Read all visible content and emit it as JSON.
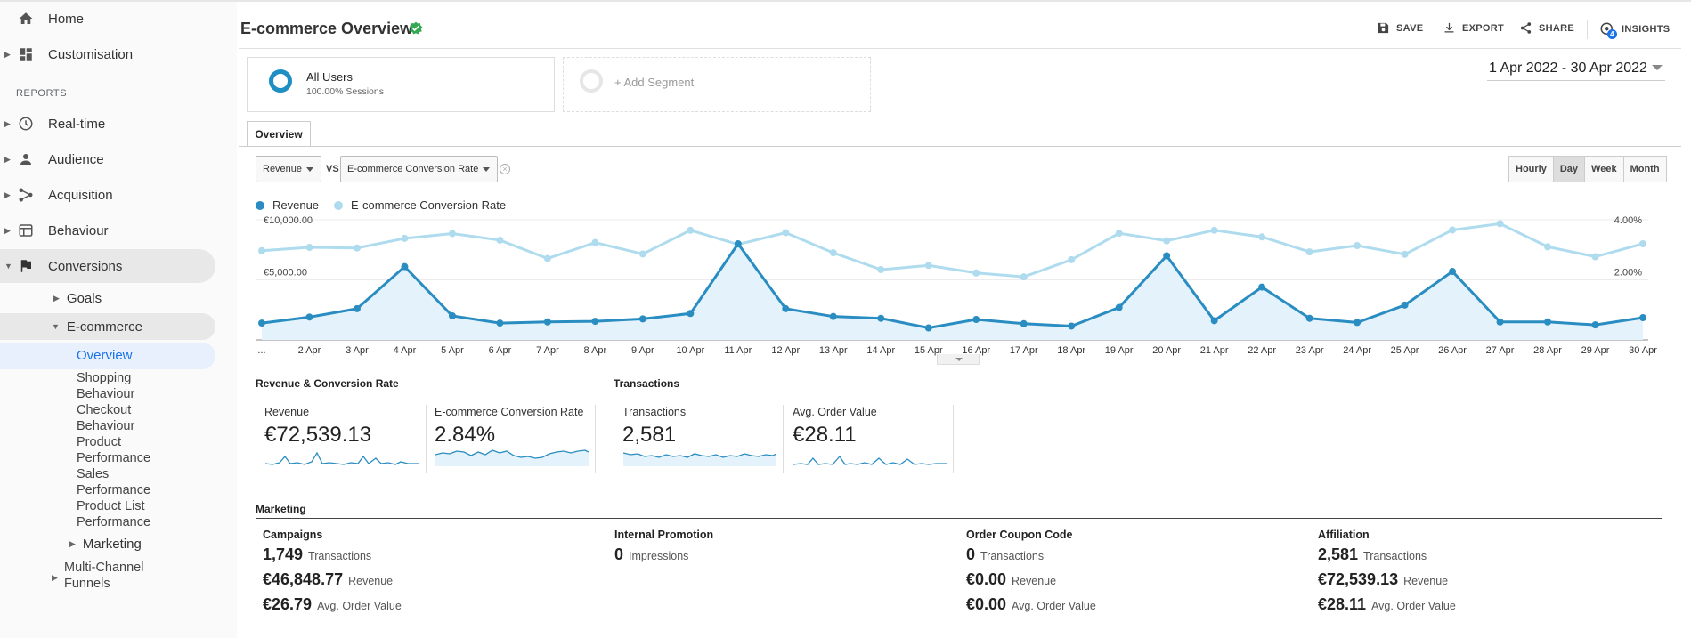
{
  "sidebar": {
    "home": "Home",
    "customisation": "Customisation",
    "reports_header": "REPORTS",
    "items": [
      "Real-time",
      "Audience",
      "Acquisition",
      "Behaviour",
      "Conversions"
    ],
    "goals": "Goals",
    "ecommerce": "E-commerce",
    "overview": "Overview",
    "leaves": [
      "Shopping",
      "Behaviour",
      "Checkout",
      "Behaviour",
      "Product",
      "Performance",
      "Sales",
      "Performance",
      "Product List",
      "Performance"
    ],
    "marketing": "Marketing",
    "multichannel_1": "Multi-Channel",
    "multichannel_2": "Funnels"
  },
  "header": {
    "title": "E-commerce Overview",
    "save": "SAVE",
    "export": "EXPORT",
    "share": "SHARE",
    "insights": "INSIGHTS",
    "insights_badge": "4"
  },
  "segments": {
    "all_users": "All Users",
    "all_users_sub": "100.00% Sessions",
    "add_segment": "+ Add Segment"
  },
  "date_range": "1 Apr 2022 - 30 Apr 2022",
  "tab": "Overview",
  "selectors": {
    "metric1": "Revenue",
    "vs": "VS",
    "metric2": "E-commerce Conversion Rate",
    "granularity": [
      "Hourly",
      "Day",
      "Week",
      "Month"
    ],
    "active": "Day"
  },
  "colors": {
    "revenue": "#2a8dc2",
    "conversion": "#aedcee",
    "area": "#e3f2fb",
    "accent_green": "#34a853"
  },
  "chart_data": {
    "type": "line",
    "x": [
      "...",
      "2 Apr",
      "3 Apr",
      "4 Apr",
      "5 Apr",
      "6 Apr",
      "7 Apr",
      "8 Apr",
      "9 Apr",
      "10 Apr",
      "11 Apr",
      "12 Apr",
      "13 Apr",
      "14 Apr",
      "15 Apr",
      "16 Apr",
      "17 Apr",
      "18 Apr",
      "19 Apr",
      "20 Apr",
      "21 Apr",
      "22 Apr",
      "23 Apr",
      "24 Apr",
      "25 Apr",
      "26 Apr",
      "27 Apr",
      "28 Apr",
      "29 Apr",
      "30 Apr"
    ],
    "series": [
      {
        "name": "Revenue",
        "axis": "left",
        "values": [
          1400,
          1900,
          2600,
          6100,
          2000,
          1400,
          1500,
          1550,
          1750,
          2200,
          8000,
          2600,
          1950,
          1800,
          1000,
          1700,
          1350,
          1150,
          2700,
          7000,
          1600,
          4400,
          1800,
          1450,
          2900,
          5700,
          1500,
          1500,
          1250,
          1850
        ]
      },
      {
        "name": "E-commerce Conversion Rate",
        "axis": "right",
        "values": [
          2.97,
          3.08,
          3.06,
          3.38,
          3.54,
          3.32,
          2.71,
          3.24,
          2.86,
          3.65,
          3.18,
          3.57,
          2.9,
          2.34,
          2.48,
          2.23,
          2.1,
          2.67,
          3.55,
          3.3,
          3.65,
          3.43,
          2.93,
          3.14,
          2.85,
          3.66,
          3.87,
          3.1,
          2.77,
          3.2
        ]
      }
    ],
    "y_left_ticks": [
      "€5,000.00",
      "€10,000.00"
    ],
    "y_right_ticks": [
      "2.00%",
      "4.00%"
    ],
    "ylim_left": [
      0,
      10000
    ],
    "ylim_right": [
      0,
      4
    ],
    "legend": "top-left"
  },
  "summary": {
    "rev_conv_header": "Revenue & Conversion Rate",
    "transactions_header": "Transactions",
    "metrics": [
      {
        "name": "Revenue",
        "value": "€72,539.13"
      },
      {
        "name": "E-commerce Conversion Rate",
        "value": "2.84%"
      },
      {
        "name": "Transactions",
        "value": "2,581"
      },
      {
        "name": "Avg. Order Value",
        "value": "€28.11"
      }
    ]
  },
  "marketing": {
    "header": "Marketing",
    "campaigns": {
      "name": "Campaigns",
      "rows": [
        {
          "v": "1,749",
          "u": "Transactions"
        },
        {
          "v": "€46,848.77",
          "u": "Revenue"
        },
        {
          "v": "€26.79",
          "u": "Avg. Order Value"
        }
      ]
    },
    "internal": {
      "name": "Internal Promotion",
      "rows": [
        {
          "v": "0",
          "u": "Impressions"
        }
      ]
    },
    "coupon": {
      "name": "Order Coupon Code",
      "rows": [
        {
          "v": "0",
          "u": "Transactions"
        },
        {
          "v": "€0.00",
          "u": "Revenue"
        },
        {
          "v": "€0.00",
          "u": "Avg. Order Value"
        }
      ]
    },
    "affiliation": {
      "name": "Affiliation",
      "rows": [
        {
          "v": "2,581",
          "u": "Transactions"
        },
        {
          "v": "€72,539.13",
          "u": "Revenue"
        },
        {
          "v": "€28.11",
          "u": "Avg. Order Value"
        }
      ]
    }
  }
}
